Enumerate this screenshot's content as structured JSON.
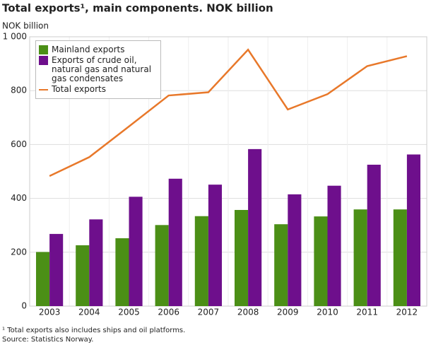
{
  "chart_data": {
    "type": "bar",
    "title": "Total exports¹, main components. NOK billion",
    "y_label": "NOK billion",
    "categories": [
      "2003",
      "2004",
      "2005",
      "2006",
      "2007",
      "2008",
      "2009",
      "2010",
      "2011",
      "2012"
    ],
    "series": [
      {
        "name": "Mainland exports",
        "color": "#4b8f16",
        "values": [
          201,
          226,
          252,
          301,
          334,
          357,
          304,
          333,
          359,
          359
        ]
      },
      {
        "name": "Exports of crude oil, natural gas and natural gas condensates",
        "color": "#6e0f8c",
        "values": [
          268,
          322,
          406,
          473,
          451,
          583,
          415,
          447,
          525,
          563
        ]
      },
      {
        "name": "Total exports",
        "color": "#e8782a",
        "type": "line",
        "values": [
          483,
          553,
          667,
          782,
          794,
          952,
          730,
          787,
          891,
          928
        ]
      }
    ],
    "ylim": [
      0,
      1000
    ],
    "yticks": [
      0,
      200,
      400,
      600,
      800,
      {
        "value": 1000,
        "label": "1 000"
      }
    ],
    "grid": true,
    "footnotes": [
      "¹ Total exports also includes ships and oil platforms.",
      "Source: Statistics Norway."
    ]
  }
}
